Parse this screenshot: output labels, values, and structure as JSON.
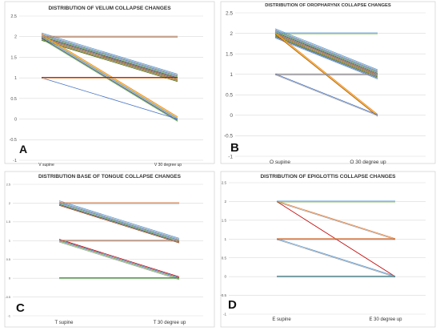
{
  "chart_data": [
    {
      "type": "line",
      "panel_label": "A",
      "title": "DISTRIBUTION OF VELUM COLLAPSE CHANGES",
      "categories": [
        "V supine",
        "V 30 degree up"
      ],
      "ylim": [
        -1,
        2.5
      ],
      "y_ticks": [
        2.5,
        2,
        1.5,
        1,
        0.5,
        0,
        -0.5,
        -1
      ],
      "grid": true,
      "legend": "none",
      "series": [
        {
          "values": [
            2,
            1
          ],
          "color": "#5b9bd5"
        },
        {
          "values": [
            2,
            1
          ],
          "color": "#a5a5a5"
        },
        {
          "values": [
            2,
            1
          ],
          "color": "#4472c4"
        },
        {
          "values": [
            2,
            1
          ],
          "color": "#70ad47"
        },
        {
          "values": [
            2,
            1
          ],
          "color": "#264478"
        },
        {
          "values": [
            2,
            1
          ],
          "color": "#9e480e"
        },
        {
          "values": [
            2,
            1
          ],
          "color": "#636363"
        },
        {
          "values": [
            2,
            1
          ],
          "color": "#997300"
        },
        {
          "values": [
            2,
            1
          ],
          "color": "#43682b"
        },
        {
          "values": [
            2,
            0
          ],
          "color": "#ed7d31"
        },
        {
          "values": [
            2,
            0
          ],
          "color": "#ffc000"
        },
        {
          "values": [
            2,
            0
          ],
          "color": "#5b9bd5"
        },
        {
          "values": [
            2,
            0
          ],
          "color": "#a5a5a5"
        },
        {
          "values": [
            2,
            0
          ],
          "color": "#264478"
        },
        {
          "values": [
            2,
            0
          ],
          "color": "#70ad47"
        },
        {
          "values": [
            2,
            2
          ],
          "color": "#ed7d31"
        },
        {
          "values": [
            2,
            2
          ],
          "color": "#5b9bd5"
        },
        {
          "values": [
            1,
            0
          ],
          "color": "#4472c4"
        },
        {
          "values": [
            1,
            1
          ],
          "color": "#c00000"
        },
        {
          "values": [
            1,
            1
          ],
          "color": "#ed7d31"
        }
      ]
    },
    {
      "type": "line",
      "panel_label": "B",
      "title": "DISTRIBUTION OF OROPHARYNX COLLAPSE CHANGES",
      "categories": [
        "O supine",
        "O 30 degree up"
      ],
      "ylim": [
        -1,
        2.5
      ],
      "y_ticks": [
        2.5,
        2,
        1.5,
        1,
        0.5,
        0,
        -0.5,
        -1
      ],
      "grid": true,
      "legend": "none",
      "series": [
        {
          "values": [
            2,
            1
          ],
          "color": "#5b9bd5"
        },
        {
          "values": [
            2,
            1
          ],
          "color": "#a5a5a5"
        },
        {
          "values": [
            2,
            1
          ],
          "color": "#4472c4"
        },
        {
          "values": [
            2,
            1
          ],
          "color": "#70ad47"
        },
        {
          "values": [
            2,
            1
          ],
          "color": "#264478"
        },
        {
          "values": [
            2,
            1
          ],
          "color": "#9e480e"
        },
        {
          "values": [
            2,
            1
          ],
          "color": "#636363"
        },
        {
          "values": [
            2,
            1
          ],
          "color": "#997300"
        },
        {
          "values": [
            2,
            1
          ],
          "color": "#43682b"
        },
        {
          "values": [
            2,
            1
          ],
          "color": "#255e91"
        },
        {
          "values": [
            2,
            1
          ],
          "color": "#698ed0"
        },
        {
          "values": [
            2,
            0
          ],
          "color": "#ed7d31"
        },
        {
          "values": [
            2,
            0
          ],
          "color": "#ffc000"
        },
        {
          "values": [
            2,
            0
          ],
          "color": "#9e480e"
        },
        {
          "values": [
            2,
            2
          ],
          "color": "#5b9bd5"
        },
        {
          "values": [
            2,
            2
          ],
          "color": "#70ad47"
        },
        {
          "values": [
            1,
            0
          ],
          "color": "#4472c4"
        },
        {
          "values": [
            1,
            0
          ],
          "color": "#a5a5a5"
        },
        {
          "values": [
            1,
            1
          ],
          "color": "#ed7d31"
        },
        {
          "values": [
            1,
            1
          ],
          "color": "#5b9bd5"
        }
      ]
    },
    {
      "type": "line",
      "panel_label": "C",
      "title": "DISTRIBUTION BASE OF TONGUE COLLAPSE CHANGES",
      "categories": [
        "T supine",
        "T 30 degree up"
      ],
      "ylim": [
        -1,
        2.5
      ],
      "y_ticks": [
        2.5,
        2,
        1.5,
        1,
        0.5,
        0,
        -0.5,
        -1
      ],
      "grid": true,
      "legend": "none",
      "series": [
        {
          "values": [
            2,
            1
          ],
          "color": "#5b9bd5"
        },
        {
          "values": [
            2,
            1
          ],
          "color": "#a5a5a5"
        },
        {
          "values": [
            2,
            1
          ],
          "color": "#4472c4"
        },
        {
          "values": [
            2,
            1
          ],
          "color": "#70ad47"
        },
        {
          "values": [
            2,
            1
          ],
          "color": "#264478"
        },
        {
          "values": [
            2,
            1
          ],
          "color": "#9e480e"
        },
        {
          "values": [
            2,
            2
          ],
          "color": "#ed7d31"
        },
        {
          "values": [
            2,
            2
          ],
          "color": "#5b9bd5"
        },
        {
          "values": [
            1,
            0
          ],
          "color": "#c00000"
        },
        {
          "values": [
            1,
            0
          ],
          "color": "#4472c4"
        },
        {
          "values": [
            1,
            0
          ],
          "color": "#70ad47"
        },
        {
          "values": [
            1,
            0
          ],
          "color": "#a5a5a5"
        },
        {
          "values": [
            1,
            1
          ],
          "color": "#ed7d31"
        },
        {
          "values": [
            1,
            1
          ],
          "color": "#5b9bd5"
        },
        {
          "values": [
            0,
            0
          ],
          "color": "#4472c4"
        },
        {
          "values": [
            0,
            0
          ],
          "color": "#70ad47"
        }
      ]
    },
    {
      "type": "line",
      "panel_label": "D",
      "title": "DISTRIBUTION OF EPIGLOTTIS COLLAPSE CHANGES",
      "categories": [
        "E supine",
        "E 30 degree up"
      ],
      "ylim": [
        -1,
        2.5
      ],
      "y_ticks": [
        2.5,
        2,
        1.5,
        1,
        0.5,
        0,
        -0.5,
        -1
      ],
      "grid": true,
      "legend": "none",
      "series": [
        {
          "values": [
            2,
            1
          ],
          "color": "#ed7d31"
        },
        {
          "values": [
            2,
            1
          ],
          "color": "#a5a5a5"
        },
        {
          "values": [
            2,
            0
          ],
          "color": "#c00000"
        },
        {
          "values": [
            2,
            2
          ],
          "color": "#5b9bd5"
        },
        {
          "values": [
            2,
            2
          ],
          "color": "#70ad47"
        },
        {
          "values": [
            1,
            0
          ],
          "color": "#5b9bd5"
        },
        {
          "values": [
            1,
            0
          ],
          "color": "#a5a5a5"
        },
        {
          "values": [
            1,
            1
          ],
          "color": "#ed7d31"
        },
        {
          "values": [
            1,
            1
          ],
          "color": "#4472c4"
        },
        {
          "values": [
            0,
            0
          ],
          "color": "#4472c4"
        },
        {
          "values": [
            0,
            0
          ],
          "color": "#70ad47"
        }
      ]
    }
  ]
}
